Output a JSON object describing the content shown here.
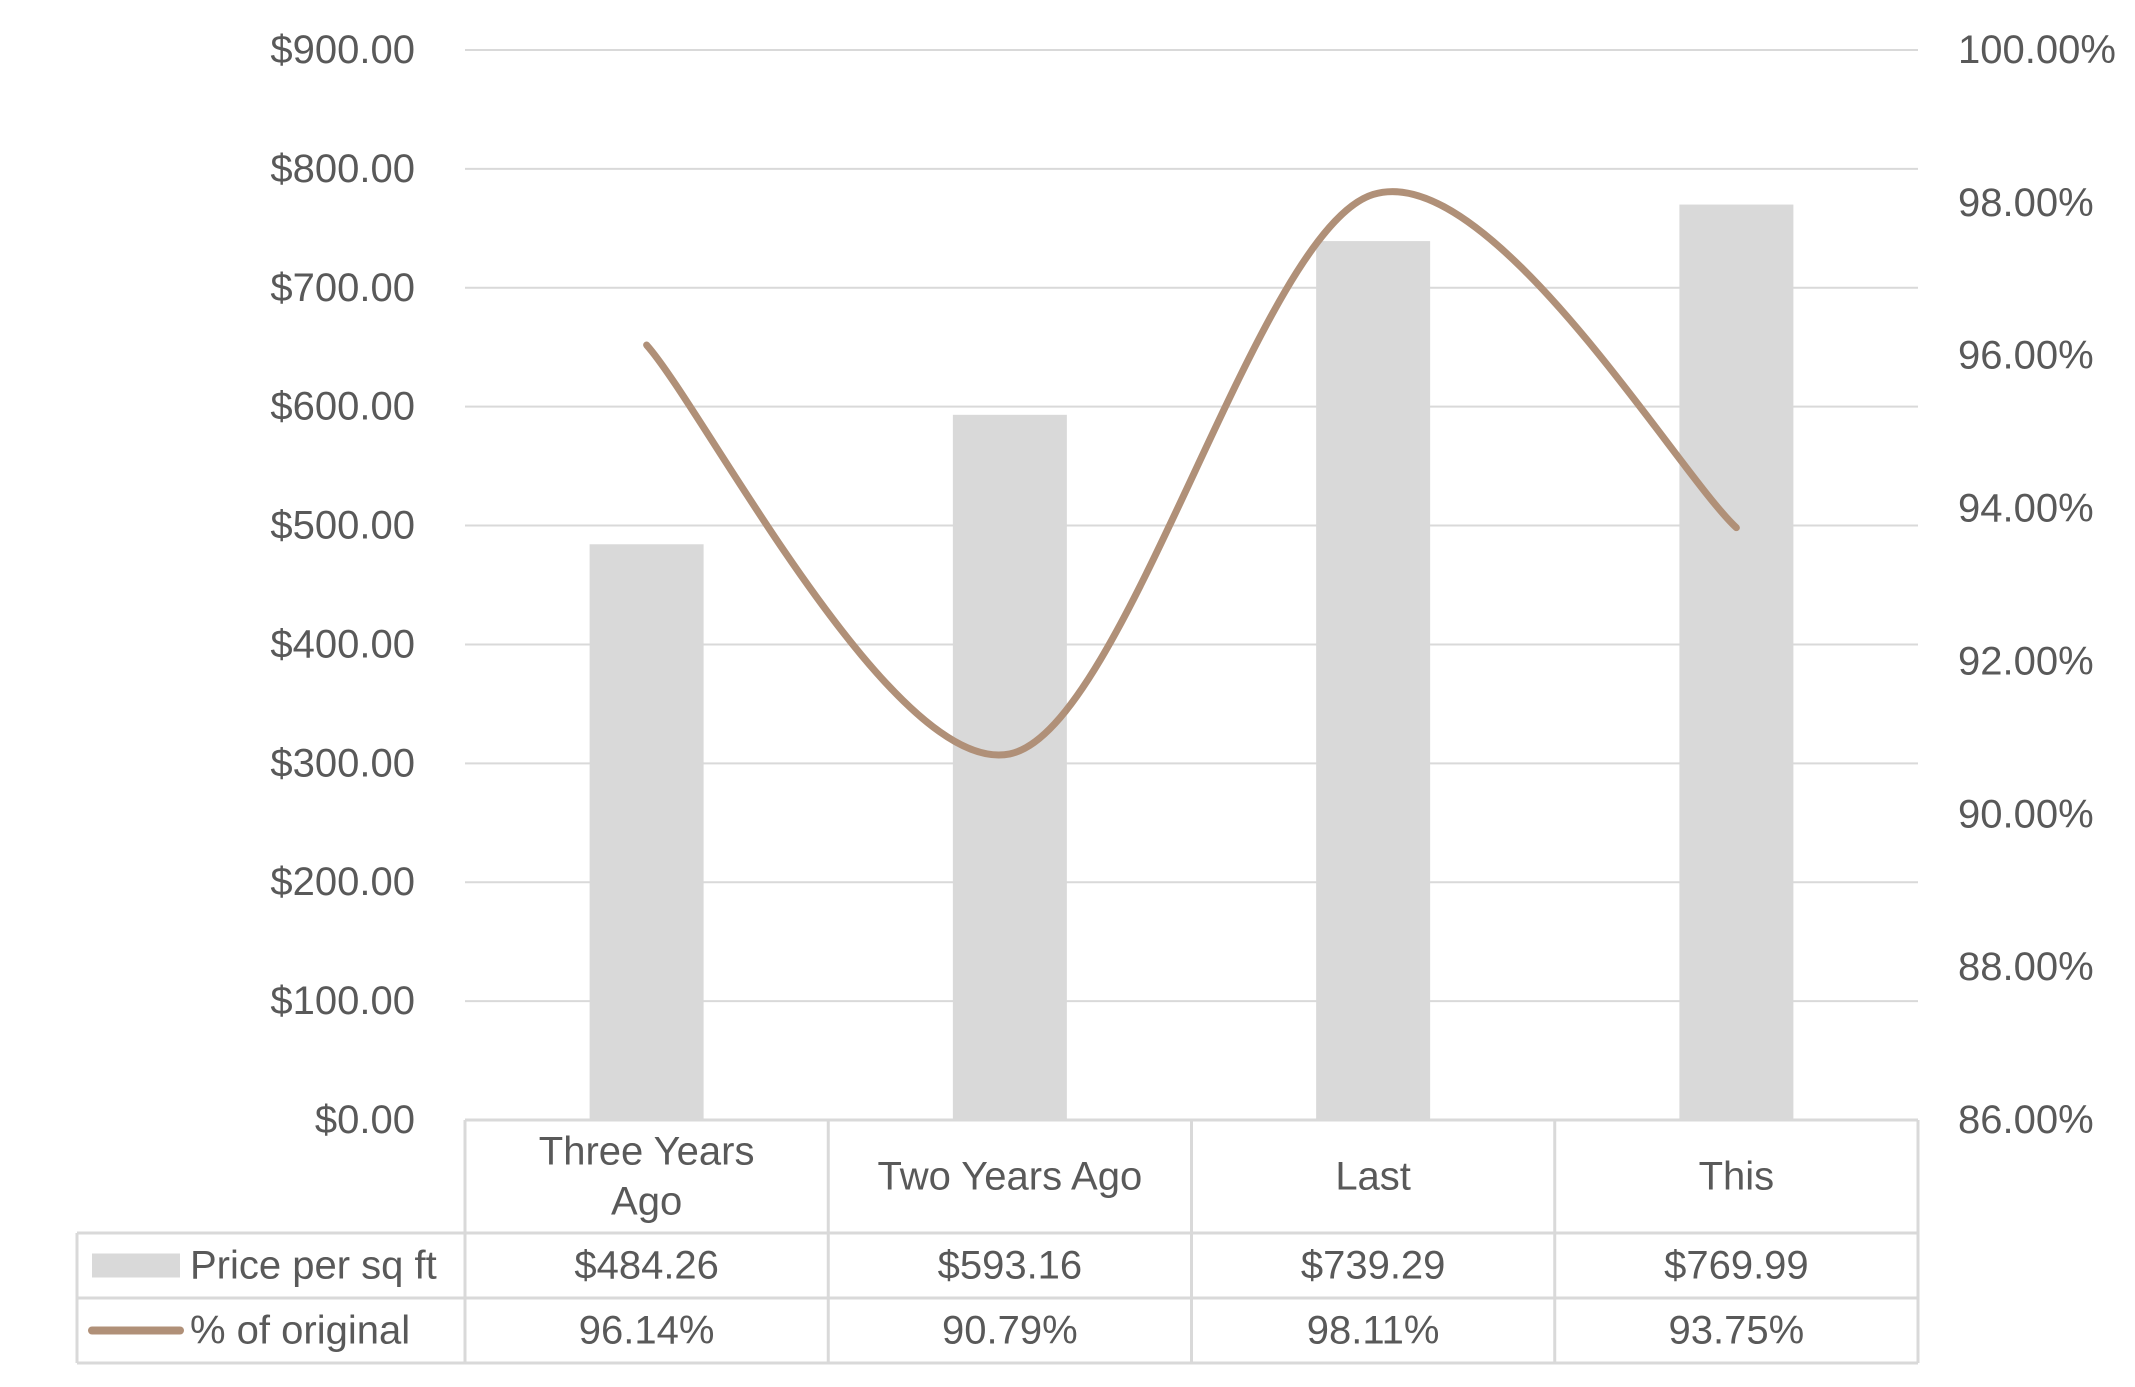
{
  "chart_data": {
    "type": "bar",
    "categories": [
      "Three Years Ago",
      "Two Years Ago",
      "Last",
      "This"
    ],
    "series": [
      {
        "name": "Price per sq ft",
        "type": "bar",
        "axis": "left",
        "values": [
          484.26,
          593.16,
          739.29,
          769.99
        ],
        "value_labels": [
          "$484.26",
          "$593.16",
          "$739.29",
          "$769.99"
        ],
        "color": "#d9d9d9"
      },
      {
        "name": "% of original",
        "type": "line",
        "smooth": true,
        "axis": "right",
        "values": [
          96.14,
          90.79,
          98.11,
          93.75
        ],
        "value_labels": [
          "96.14%",
          "90.79%",
          "98.11%",
          "93.75%"
        ],
        "color": "#b09078"
      }
    ],
    "y_left": {
      "ylim": [
        0,
        900
      ],
      "ticks": [
        0,
        100,
        200,
        300,
        400,
        500,
        600,
        700,
        800,
        900
      ],
      "tick_labels": [
        "$0.00",
        "$100.00",
        "$200.00",
        "$300.00",
        "$400.00",
        "$500.00",
        "$600.00",
        "$700.00",
        "$800.00",
        "$900.00"
      ]
    },
    "y_right": {
      "ylim": [
        86,
        100
      ],
      "ticks": [
        86,
        88,
        90,
        92,
        94,
        96,
        98,
        100
      ],
      "tick_labels": [
        "86.00%",
        "88.00%",
        "90.00%",
        "92.00%",
        "94.00%",
        "96.00%",
        "98.00%",
        "100.00%"
      ]
    },
    "grid": true,
    "legend": "data-table",
    "data_table": true
  },
  "colors": {
    "gridline": "#d9d9d9",
    "text": "#595959",
    "table_border": "#d9d9d9"
  }
}
